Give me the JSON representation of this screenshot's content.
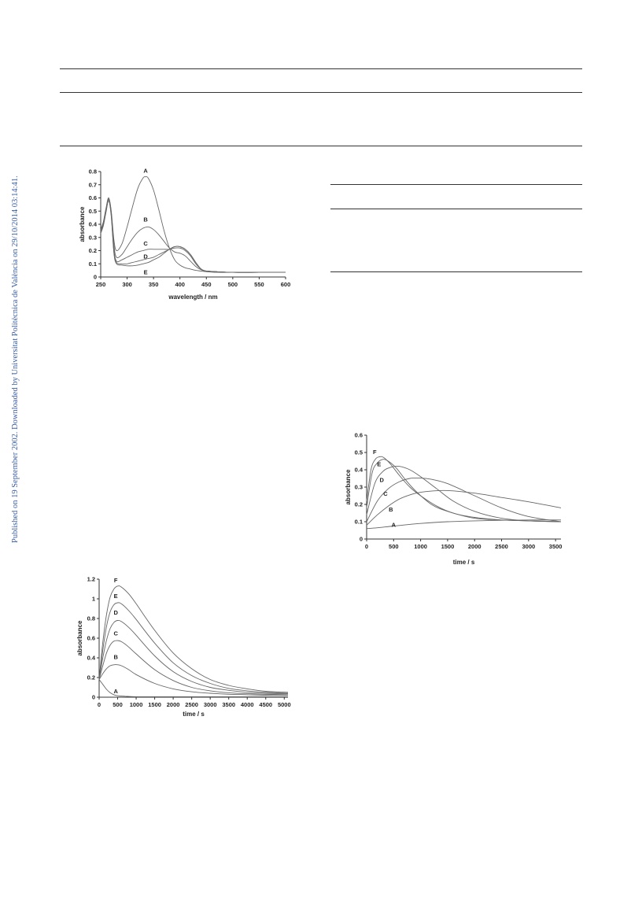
{
  "side_note": "Published on 19 September 2002. Downloaded by Universitat Politècnica de València on 29/10/2014 03:14:41.",
  "chart_data": [
    {
      "id": "fig-spectra",
      "type": "line",
      "xlabel": "wavelength / nm",
      "ylabel": "absorbance",
      "xlim": [
        250,
        600
      ],
      "ylim": [
        0,
        0.8
      ],
      "xticks": [
        250,
        300,
        350,
        400,
        450,
        500,
        550,
        600
      ],
      "yticks": [
        0,
        0.1,
        0.2,
        0.3,
        0.4,
        0.5,
        0.6,
        0.7,
        0.8
      ],
      "grid": false,
      "series": [
        {
          "name": "A",
          "label_at": [
            335,
            0.79
          ],
          "x": [
            250,
            255,
            260,
            265,
            270,
            275,
            280,
            290,
            300,
            310,
            320,
            330,
            335,
            340,
            350,
            360,
            370,
            380,
            390,
            400,
            410,
            420,
            430,
            440,
            450,
            470,
            500,
            550,
            600
          ],
          "y": [
            0.36,
            0.42,
            0.52,
            0.6,
            0.5,
            0.28,
            0.2,
            0.25,
            0.38,
            0.53,
            0.67,
            0.75,
            0.76,
            0.75,
            0.66,
            0.51,
            0.35,
            0.22,
            0.13,
            0.09,
            0.07,
            0.06,
            0.05,
            0.045,
            0.04,
            0.035,
            0.035,
            0.035,
            0.035
          ]
        },
        {
          "name": "B",
          "label_at": [
            335,
            0.42
          ],
          "x": [
            250,
            255,
            260,
            265,
            270,
            275,
            280,
            290,
            300,
            310,
            320,
            330,
            340,
            350,
            360,
            370,
            380,
            390,
            400,
            410,
            420,
            430,
            440,
            450,
            470,
            500,
            550,
            600
          ],
          "y": [
            0.35,
            0.41,
            0.51,
            0.6,
            0.49,
            0.24,
            0.15,
            0.17,
            0.23,
            0.29,
            0.34,
            0.37,
            0.38,
            0.36,
            0.32,
            0.27,
            0.22,
            0.19,
            0.18,
            0.16,
            0.12,
            0.08,
            0.055,
            0.045,
            0.04,
            0.035,
            0.035,
            0.035
          ]
        },
        {
          "name": "C",
          "label_at": [
            335,
            0.24
          ],
          "x": [
            250,
            255,
            260,
            265,
            270,
            275,
            280,
            290,
            300,
            310,
            320,
            330,
            340,
            350,
            360,
            370,
            380,
            390,
            400,
            410,
            420,
            430,
            440,
            450,
            470,
            500,
            550,
            600
          ],
          "y": [
            0.34,
            0.4,
            0.5,
            0.59,
            0.48,
            0.21,
            0.12,
            0.13,
            0.15,
            0.17,
            0.19,
            0.2,
            0.21,
            0.21,
            0.21,
            0.21,
            0.21,
            0.22,
            0.22,
            0.2,
            0.16,
            0.1,
            0.06,
            0.045,
            0.04,
            0.035,
            0.035,
            0.035
          ]
        },
        {
          "name": "D",
          "label_at": [
            335,
            0.14
          ],
          "x": [
            250,
            255,
            260,
            265,
            270,
            275,
            280,
            290,
            300,
            310,
            320,
            330,
            340,
            350,
            360,
            370,
            380,
            390,
            400,
            410,
            420,
            430,
            440,
            450,
            470,
            500,
            550,
            600
          ],
          "y": [
            0.34,
            0.4,
            0.5,
            0.58,
            0.47,
            0.19,
            0.11,
            0.1,
            0.1,
            0.11,
            0.12,
            0.13,
            0.14,
            0.15,
            0.17,
            0.19,
            0.21,
            0.23,
            0.23,
            0.21,
            0.17,
            0.11,
            0.06,
            0.045,
            0.04,
            0.035,
            0.035,
            0.035
          ]
        },
        {
          "name": "E",
          "label_at": [
            335,
            0.02
          ],
          "x": [
            250,
            255,
            260,
            265,
            270,
            275,
            280,
            290,
            300,
            310,
            320,
            330,
            340,
            350,
            360,
            370,
            380,
            390,
            400,
            410,
            420,
            430,
            440,
            450,
            470,
            500,
            550,
            600
          ],
          "y": [
            0.33,
            0.39,
            0.49,
            0.58,
            0.46,
            0.18,
            0.1,
            0.09,
            0.085,
            0.085,
            0.09,
            0.1,
            0.11,
            0.13,
            0.15,
            0.18,
            0.21,
            0.23,
            0.23,
            0.21,
            0.17,
            0.11,
            0.06,
            0.045,
            0.04,
            0.035,
            0.035,
            0.035
          ]
        }
      ]
    },
    {
      "id": "fig-kinetics-right",
      "type": "line",
      "xlabel": "time / s",
      "ylabel": "absorbance",
      "xlim": [
        0,
        3600
      ],
      "ylim": [
        0,
        0.6
      ],
      "xticks": [
        0,
        500,
        1000,
        1500,
        2000,
        2500,
        3000,
        3500
      ],
      "yticks": [
        0,
        0.1,
        0.2,
        0.3,
        0.4,
        0.5,
        0.6
      ],
      "grid": false,
      "series": [
        {
          "name": "A",
          "label_at": [
            500,
            0.07
          ],
          "x": [
            0,
            200,
            500,
            1000,
            1500,
            2000,
            2500,
            3000,
            3600
          ],
          "y": [
            0.06,
            0.065,
            0.075,
            0.09,
            0.1,
            0.105,
            0.108,
            0.11,
            0.11
          ]
        },
        {
          "name": "B",
          "label_at": [
            450,
            0.16
          ],
          "x": [
            0,
            200,
            400,
            600,
            800,
            1000,
            1200,
            1500,
            2000,
            2500,
            3000,
            3600
          ],
          "y": [
            0.08,
            0.14,
            0.19,
            0.23,
            0.255,
            0.27,
            0.277,
            0.28,
            0.265,
            0.24,
            0.215,
            0.18
          ]
        },
        {
          "name": "C",
          "label_at": [
            350,
            0.25
          ],
          "x": [
            0,
            200,
            400,
            600,
            800,
            1000,
            1200,
            1500,
            2000,
            2500,
            3000,
            3600
          ],
          "y": [
            0.1,
            0.22,
            0.29,
            0.33,
            0.35,
            0.352,
            0.345,
            0.32,
            0.25,
            0.18,
            0.13,
            0.1
          ]
        },
        {
          "name": "D",
          "label_at": [
            280,
            0.33
          ],
          "x": [
            0,
            150,
            300,
            450,
            600,
            800,
            1000,
            1300,
            1600,
            2000,
            2500,
            3000,
            3600
          ],
          "y": [
            0.14,
            0.32,
            0.39,
            0.415,
            0.42,
            0.4,
            0.36,
            0.29,
            0.22,
            0.16,
            0.12,
            0.105,
            0.1
          ]
        },
        {
          "name": "E",
          "label_at": [
            230,
            0.42
          ],
          "x": [
            0,
            100,
            200,
            300,
            400,
            550,
            700,
            900,
            1200,
            1500,
            2000,
            2500,
            3000,
            3600
          ],
          "y": [
            0.18,
            0.38,
            0.44,
            0.46,
            0.45,
            0.41,
            0.35,
            0.28,
            0.2,
            0.16,
            0.12,
            0.11,
            0.105,
            0.1
          ]
        },
        {
          "name": "F",
          "label_at": [
            150,
            0.49
          ],
          "x": [
            0,
            80,
            160,
            240,
            320,
            450,
            600,
            800,
            1000,
            1300,
            1600,
            2000,
            2500,
            3000,
            3600
          ],
          "y": [
            0.22,
            0.4,
            0.46,
            0.475,
            0.47,
            0.43,
            0.37,
            0.3,
            0.25,
            0.19,
            0.15,
            0.125,
            0.11,
            0.105,
            0.1
          ]
        }
      ]
    },
    {
      "id": "fig-kinetics-left",
      "type": "line",
      "xlabel": "time / s",
      "ylabel": "absorbance",
      "xlim": [
        0,
        5100
      ],
      "ylim": [
        0,
        1.2
      ],
      "xticks": [
        0,
        500,
        1000,
        1500,
        2000,
        2500,
        3000,
        3500,
        4000,
        4500,
        5000
      ],
      "yticks": [
        0,
        0.2,
        0.4,
        0.6,
        0.8,
        1,
        1.2
      ],
      "grid": false,
      "series": [
        {
          "name": "A",
          "label_at": [
            450,
            0.04
          ],
          "x": [
            0,
            100,
            200,
            300,
            400,
            500,
            700,
            1000,
            2000,
            3000,
            4000,
            5100
          ],
          "y": [
            0.18,
            0.13,
            0.08,
            0.045,
            0.025,
            0.015,
            0.01,
            0.005,
            0.005,
            0.005,
            0.005,
            0.005
          ]
        },
        {
          "name": "B",
          "label_at": [
            450,
            0.39
          ],
          "x": [
            0,
            100,
            200,
            300,
            400,
            500,
            600,
            800,
            1000,
            1500,
            2000,
            2500,
            3000,
            3500,
            4000,
            4500,
            5100
          ],
          "y": [
            0.18,
            0.24,
            0.29,
            0.32,
            0.33,
            0.33,
            0.32,
            0.28,
            0.23,
            0.14,
            0.085,
            0.055,
            0.04,
            0.03,
            0.025,
            0.02,
            0.02
          ]
        },
        {
          "name": "C",
          "label_at": [
            450,
            0.63
          ],
          "x": [
            0,
            100,
            200,
            300,
            400,
            500,
            600,
            800,
            1000,
            1500,
            2000,
            2500,
            3000,
            3500,
            4000,
            4500,
            5100
          ],
          "y": [
            0.18,
            0.32,
            0.45,
            0.53,
            0.57,
            0.575,
            0.565,
            0.51,
            0.44,
            0.28,
            0.17,
            0.1,
            0.065,
            0.045,
            0.035,
            0.03,
            0.025
          ]
        },
        {
          "name": "D",
          "label_at": [
            450,
            0.84
          ],
          "x": [
            0,
            100,
            200,
            300,
            400,
            500,
            600,
            800,
            1000,
            1500,
            2000,
            2500,
            3000,
            3500,
            4000,
            4500,
            5100
          ],
          "y": [
            0.18,
            0.4,
            0.58,
            0.7,
            0.76,
            0.78,
            0.77,
            0.71,
            0.63,
            0.42,
            0.26,
            0.16,
            0.1,
            0.07,
            0.05,
            0.04,
            0.035
          ]
        },
        {
          "name": "E",
          "label_at": [
            450,
            1.01
          ],
          "x": [
            0,
            100,
            200,
            300,
            400,
            500,
            600,
            800,
            1000,
            1500,
            2000,
            2500,
            3000,
            3500,
            4000,
            4500,
            5100
          ],
          "y": [
            0.18,
            0.48,
            0.72,
            0.87,
            0.94,
            0.96,
            0.95,
            0.88,
            0.79,
            0.55,
            0.35,
            0.22,
            0.14,
            0.09,
            0.065,
            0.05,
            0.04
          ]
        },
        {
          "name": "F",
          "label_at": [
            450,
            1.17
          ],
          "x": [
            0,
            100,
            200,
            300,
            400,
            500,
            600,
            800,
            1000,
            1500,
            2000,
            2500,
            3000,
            3500,
            4000,
            4500,
            5100
          ],
          "y": [
            0.18,
            0.56,
            0.84,
            1.02,
            1.1,
            1.13,
            1.12,
            1.05,
            0.95,
            0.68,
            0.45,
            0.29,
            0.18,
            0.12,
            0.085,
            0.06,
            0.05
          ]
        }
      ]
    }
  ]
}
